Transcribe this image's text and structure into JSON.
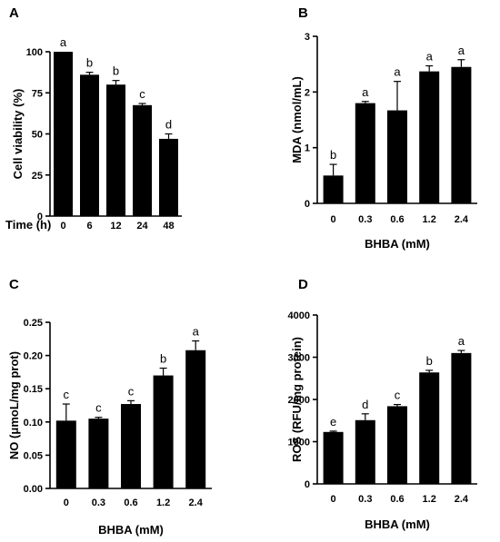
{
  "chart_data": [
    {
      "panel": "A",
      "type": "bar",
      "ylabel": "Cell viability (%)",
      "xlabel": "Time (h)",
      "xlabel_position": "inline-left",
      "categories": [
        "0",
        "6",
        "12",
        "24",
        "48"
      ],
      "values": [
        100,
        86,
        80,
        67.5,
        47
      ],
      "errors": [
        0,
        1.5,
        2.5,
        1,
        3
      ],
      "significance": [
        "a",
        "b",
        "b",
        "c",
        "d"
      ],
      "ylim": [
        0,
        100
      ],
      "yticks": [
        0,
        25,
        50,
        75,
        100
      ],
      "ytick_labels": [
        "0",
        "25",
        "50",
        "75",
        "100"
      ]
    },
    {
      "panel": "B",
      "type": "bar",
      "ylabel": "MDA (nmol/mL)",
      "xlabel": "BHBA (mM)",
      "categories": [
        "0",
        "0.3",
        "0.6",
        "1.2",
        "2.4"
      ],
      "values": [
        0.5,
        1.8,
        1.67,
        2.37,
        2.45
      ],
      "errors": [
        0.2,
        0.03,
        0.52,
        0.1,
        0.13
      ],
      "significance": [
        "b",
        "a",
        "a",
        "a",
        "a"
      ],
      "ylim": [
        0,
        3
      ],
      "yticks": [
        0,
        1,
        2,
        3
      ],
      "ytick_labels": [
        "0",
        "1",
        "2",
        "3"
      ]
    },
    {
      "panel": "C",
      "type": "bar",
      "ylabel": "NO (μmoL/mg prot)",
      "xlabel": "BHBA (mM)",
      "categories": [
        "0",
        "0.3",
        "0.6",
        "1.2",
        "2.4"
      ],
      "values": [
        0.102,
        0.105,
        0.127,
        0.17,
        0.208
      ],
      "errors": [
        0.025,
        0.002,
        0.005,
        0.011,
        0.014
      ],
      "significance": [
        "c",
        "c",
        "c",
        "b",
        "a"
      ],
      "ylim": [
        0,
        0.25
      ],
      "yticks": [
        0,
        0.05,
        0.1,
        0.15,
        0.2,
        0.25
      ],
      "ytick_labels": [
        "0.00",
        "0.05",
        "0.10",
        "0.15",
        "0.20",
        "0.25"
      ]
    },
    {
      "panel": "D",
      "type": "bar",
      "ylabel": "ROS (RFU/mg protein)",
      "xlabel": "BHBA (mM)",
      "categories": [
        "0",
        "0.3",
        "0.6",
        "1.2",
        "2.4"
      ],
      "values": [
        1230,
        1510,
        1840,
        2640,
        3100
      ],
      "errors": [
        20,
        150,
        40,
        50,
        60
      ],
      "significance": [
        "e",
        "d",
        "c",
        "b",
        "a"
      ],
      "ylim": [
        0,
        4000
      ],
      "yticks": [
        0,
        1000,
        2000,
        3000,
        4000
      ],
      "ytick_labels": [
        "0",
        "1000",
        "2000",
        "3000",
        "4000"
      ]
    }
  ]
}
